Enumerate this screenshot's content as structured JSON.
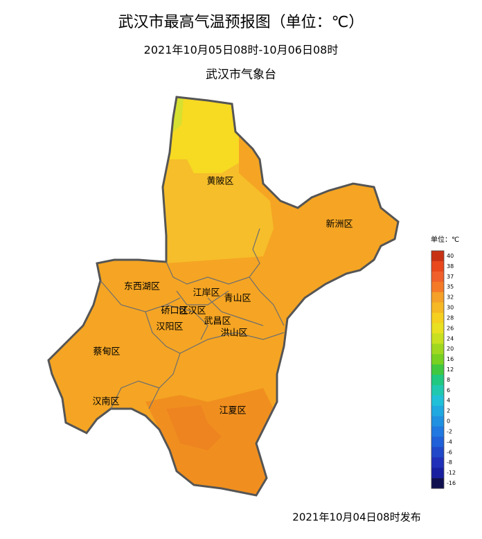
{
  "header": {
    "title": "武汉市最高气温预报图（单位：℃）",
    "subtitle": "2021年10月05日08时-10月06日08时",
    "agency": "武汉市气象台"
  },
  "districts": [
    {
      "label": "黄陂区"
    },
    {
      "label": "新洲区"
    },
    {
      "label": "东西湖区"
    },
    {
      "label": "江岸区"
    },
    {
      "label": "青山区"
    },
    {
      "label": "硚口区"
    },
    {
      "label": "江汉区"
    },
    {
      "label": "汉阳区"
    },
    {
      "label": "武昌区"
    },
    {
      "label": "洪山区"
    },
    {
      "label": "蔡甸区"
    },
    {
      "label": "汉南区"
    },
    {
      "label": "江夏区"
    }
  ],
  "legend": {
    "title": "单位：℃",
    "levels": [
      {
        "label": 40,
        "color": "#c83214"
      },
      {
        "label": 38,
        "color": "#e8481c"
      },
      {
        "label": 37,
        "color": "#f0602a"
      },
      {
        "label": 35,
        "color": "#f57a28"
      },
      {
        "label": 32,
        "color": "#f5a028"
      },
      {
        "label": 30,
        "color": "#f6b824"
      },
      {
        "label": 28,
        "color": "#f5d020"
      },
      {
        "label": 26,
        "color": "#e8e020"
      },
      {
        "label": 24,
        "color": "#c8e020"
      },
      {
        "label": 20,
        "color": "#a0d820"
      },
      {
        "label": 16,
        "color": "#78d020"
      },
      {
        "label": 12,
        "color": "#40c840"
      },
      {
        "label": 8,
        "color": "#20c880"
      },
      {
        "label": 6,
        "color": "#20c8b0"
      },
      {
        "label": 4,
        "color": "#20c0d8"
      },
      {
        "label": 2,
        "color": "#20a8e0"
      },
      {
        "label": 0,
        "color": "#2090e0"
      },
      {
        "label": -2,
        "color": "#2078e0"
      },
      {
        "label": -4,
        "color": "#2060d8"
      },
      {
        "label": -6,
        "color": "#2048c8"
      },
      {
        "label": -8,
        "color": "#2030b8"
      },
      {
        "label": -12,
        "color": "#1820a0"
      },
      {
        "label": -16,
        "color": "#101050"
      }
    ]
  },
  "footer": {
    "issued": "2021年10月04日08时发布"
  }
}
